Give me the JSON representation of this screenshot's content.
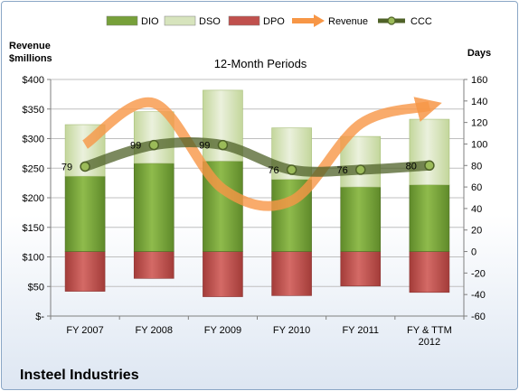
{
  "chart_data": {
    "type": "bar",
    "title": "12-Month Periods",
    "company": "Insteel Industries",
    "left_axis_label": [
      "Revenue",
      "$millions"
    ],
    "right_axis_label": "Days",
    "categories": [
      [
        "FY 2007"
      ],
      [
        "FY 2008"
      ],
      [
        "FY 2009"
      ],
      [
        "FY 2010"
      ],
      [
        "FY 2011"
      ],
      [
        "FY & TTM",
        "2012"
      ]
    ],
    "left_ticks": [
      "$-",
      "$50",
      "$100",
      "$150",
      "$200",
      "$250",
      "$300",
      "$350",
      "$400"
    ],
    "left_ylim": [
      0,
      400
    ],
    "right_ticks": [
      "-60",
      "-40",
      "-20",
      "0",
      "20",
      "40",
      "60",
      "80",
      "100",
      "120",
      "140",
      "160"
    ],
    "right_ylim": [
      -60,
      160
    ],
    "legend": [
      {
        "label": "DIO",
        "kind": "bar",
        "color": "#77a03a"
      },
      {
        "label": "DSO",
        "kind": "bar",
        "color": "#d7e4bd"
      },
      {
        "label": "DPO",
        "kind": "bar",
        "color": "#c0504d"
      },
      {
        "label": "Revenue",
        "kind": "arrow",
        "color": "#f79646"
      },
      {
        "label": "CCC",
        "kind": "line-marker",
        "color": "#4f6228"
      }
    ],
    "series": [
      {
        "name": "DIO",
        "axis": "right",
        "values": [
          70,
          82,
          84,
          67,
          60,
          62
        ]
      },
      {
        "name": "DSO",
        "axis": "right",
        "values": [
          48,
          48,
          66,
          48,
          47,
          61
        ]
      },
      {
        "name": "DPO",
        "axis": "right",
        "values": [
          -37,
          -25,
          -42,
          -41,
          -32,
          -38
        ]
      },
      {
        "name": "Revenue",
        "axis": "left",
        "values": [
          290,
          360,
          215,
          195,
          325,
          355
        ]
      },
      {
        "name": "CCC",
        "axis": "right",
        "values": [
          79,
          99,
          99,
          76,
          76,
          80
        ]
      }
    ],
    "ccc_labels": [
      "79",
      "99",
      "99",
      "76",
      "76",
      "80"
    ]
  }
}
